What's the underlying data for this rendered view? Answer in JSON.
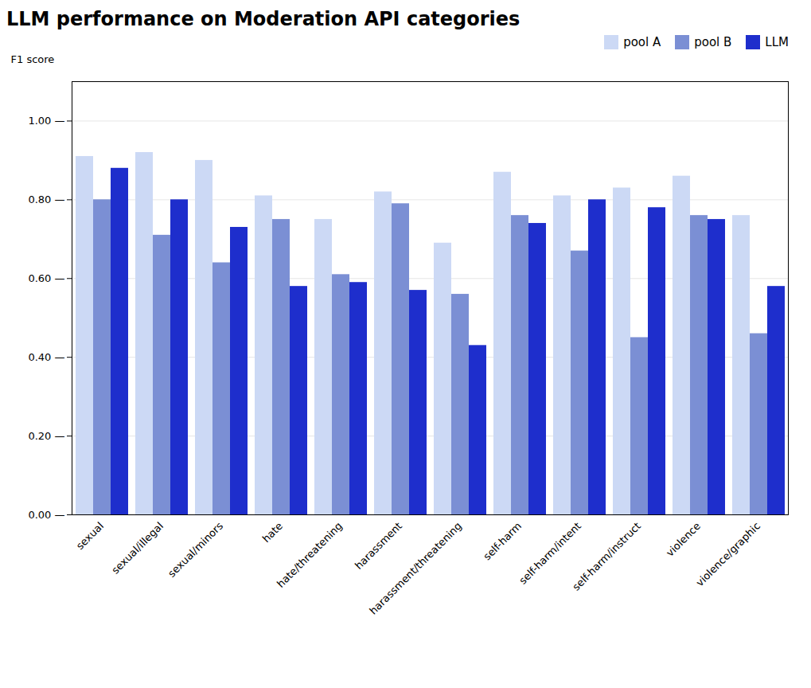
{
  "chart_data": {
    "type": "bar",
    "title": "LLM performance on Moderation API categories",
    "ylabel": "F1 score",
    "categories": [
      "sexual",
      "sexual/illegal",
      "sexual/minors",
      "hate",
      "hate/threatening",
      "harassment",
      "harassment/threatening",
      "self-harm",
      "self-harm/intent",
      "self-harm/instruct",
      "violence",
      "violence/graphic"
    ],
    "series": [
      {
        "name": "pool A",
        "color": "#ccd9f5",
        "values": [
          0.91,
          0.92,
          0.9,
          0.81,
          0.75,
          0.82,
          0.69,
          0.87,
          0.81,
          0.83,
          0.86,
          0.76
        ]
      },
      {
        "name": "pool B",
        "color": "#7b8fd4",
        "values": [
          0.8,
          0.71,
          0.64,
          0.75,
          0.61,
          0.79,
          0.56,
          0.76,
          0.67,
          0.45,
          0.76,
          0.46
        ]
      },
      {
        "name": "LLM",
        "color": "#1e2ecc",
        "values": [
          0.88,
          0.8,
          0.73,
          0.58,
          0.59,
          0.57,
          0.43,
          0.74,
          0.8,
          0.78,
          0.75,
          0.58
        ]
      }
    ],
    "ylim": [
      0,
      1.1
    ],
    "yticks": [
      {
        "value": 0.0,
        "label": "0.00 —"
      },
      {
        "value": 0.2,
        "label": "0.20 —"
      },
      {
        "value": 0.4,
        "label": "0.40 —"
      },
      {
        "value": 0.6,
        "label": "0.60 —"
      },
      {
        "value": 0.8,
        "label": "0.80 —"
      },
      {
        "value": 1.0,
        "label": "1.00 —"
      }
    ],
    "grid": true,
    "legend": "upper right"
  }
}
